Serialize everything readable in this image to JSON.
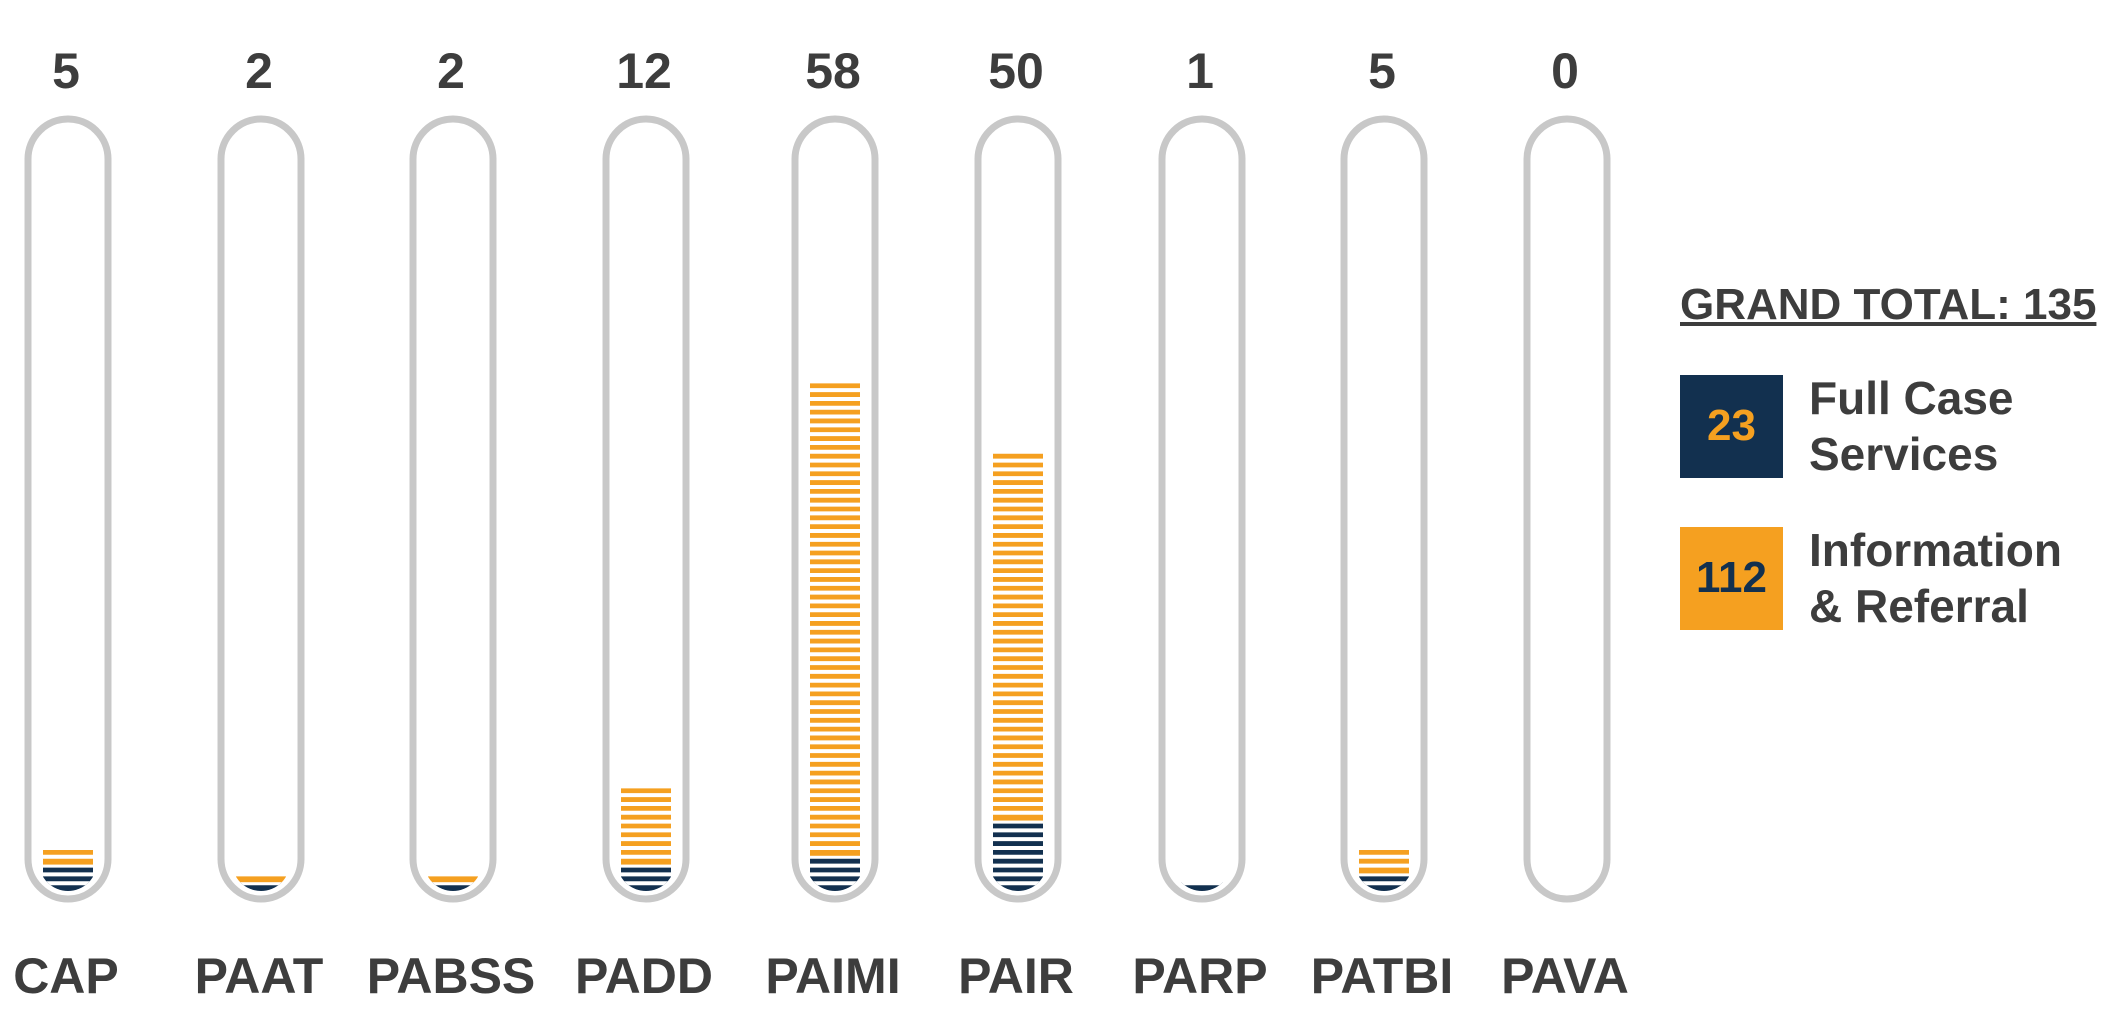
{
  "chart_data": {
    "type": "tube-stack",
    "categories": [
      "CAP",
      "PAAT",
      "PABSS",
      "PADD",
      "PAIMI",
      "PAIR",
      "PARP",
      "PATBI",
      "PAVA"
    ],
    "totals": [
      5,
      2,
      2,
      12,
      58,
      50,
      1,
      5,
      0
    ],
    "series": [
      {
        "name": "Full Case Services",
        "color": "#12304f",
        "total": 23,
        "values": [
          3,
          1,
          1,
          3,
          4,
          8,
          1,
          2,
          0
        ]
      },
      {
        "name": "Information & Referral",
        "color": "#f5a020",
        "total": 112,
        "values": [
          2,
          1,
          1,
          9,
          54,
          42,
          0,
          3,
          0
        ]
      }
    ],
    "ylim": [
      0,
      87
    ],
    "grand_total_label": "GRAND TOTAL: 135"
  }
}
